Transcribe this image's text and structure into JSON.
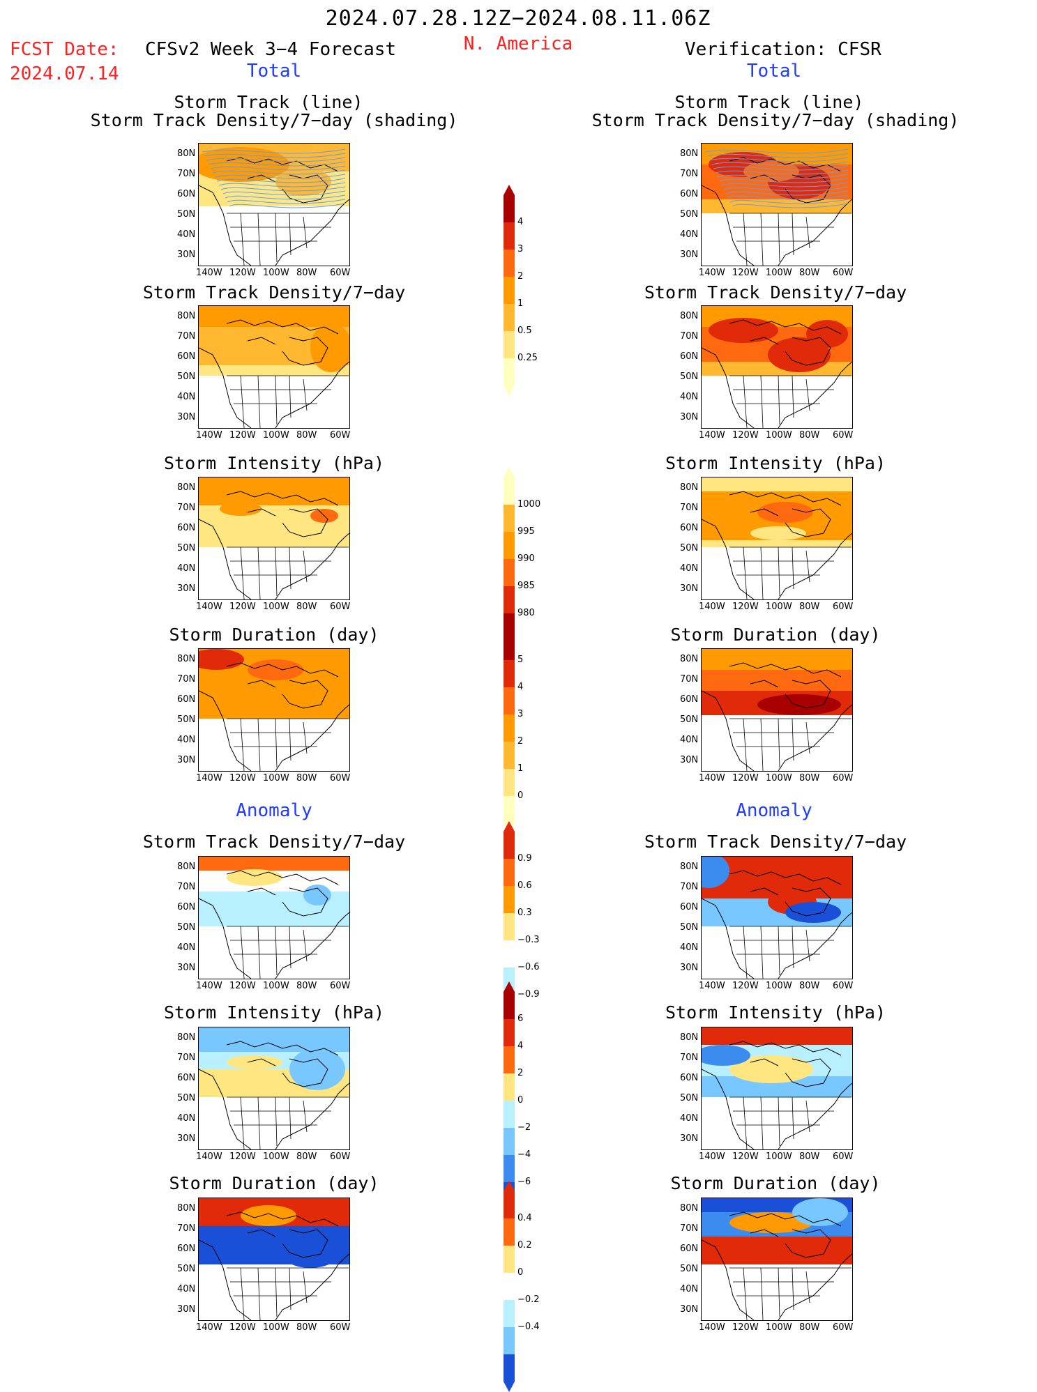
{
  "header": {
    "period": "2024.07.28.12Z−2024.08.11.06Z",
    "fcst_label": "FCST Date:",
    "fcst_date": "2024.07.14",
    "model": "CFSv2 Week 3−4 Forecast",
    "region": "N. America",
    "verification": "Verification: CFSR",
    "total_left": "Total",
    "total_right": "Total",
    "anomaly_left": "Anomaly",
    "anomaly_right": "Anomaly"
  },
  "panel_titles": {
    "track_line": "Storm Track (line)",
    "track_shading": "Storm Track Density/7−day (shading)",
    "density": "Storm Track Density/7−day",
    "intensity": "Storm Intensity (hPa)",
    "duration": "Storm Duration (day)"
  },
  "axes": {
    "lat_labels": [
      "80N",
      "70N",
      "60N",
      "50N",
      "40N",
      "30N"
    ],
    "lon_labels": [
      "140W",
      "120W",
      "100W",
      "80W",
      "60W"
    ]
  },
  "colorbars": {
    "density": [
      "4",
      "3",
      "2",
      "1",
      "0.5",
      "0.25"
    ],
    "intensity": [
      "1000",
      "995",
      "990",
      "985",
      "980"
    ],
    "duration": [
      "5",
      "4",
      "3",
      "2",
      "1",
      "0"
    ],
    "density_anom": [
      "0.9",
      "0.6",
      "0.3",
      "−0.3",
      "−0.6",
      "−0.9"
    ],
    "intensity_anom": [
      "6",
      "4",
      "2",
      "0",
      "−2",
      "−4",
      "−6"
    ],
    "duration_anom": [
      "0.4",
      "0.2",
      "0",
      "−0.2",
      "−0.4"
    ]
  },
  "colors": {
    "c0": "#ffffc0",
    "c1": "#ffe680",
    "c2": "#ffb830",
    "c3": "#ff9a00",
    "c4": "#ff6a10",
    "c5": "#e02a0a",
    "c6": "#a80000",
    "b1": "#b8f0ff",
    "b2": "#78c8ff",
    "b3": "#3c8cf0",
    "b4": "#1a50d8",
    "track_line": "#5aa0ff"
  }
}
